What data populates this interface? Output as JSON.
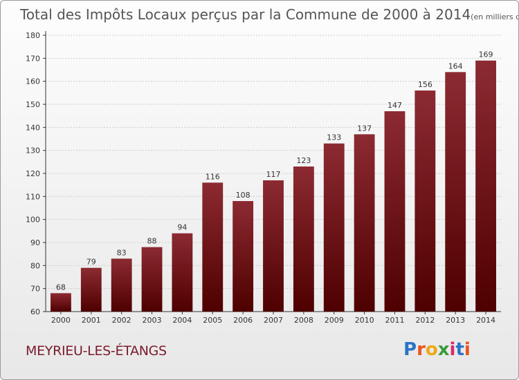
{
  "title": "Total des Impôts Locaux perçus par la Commune de 2000 à 2014",
  "unit_note": "(en milliers d'€)",
  "commune": "MEYRIEU-LES-ÉTANGS",
  "logo": {
    "text": "Proxiti",
    "letter_colors": [
      "#2a74c8",
      "#e8541c",
      "#f0a818",
      "#3a9a3a",
      "#d82a6a",
      "#2a74c8",
      "#e8541c"
    ]
  },
  "colors": {
    "bar_top": "#8c2a32",
    "bar_bottom": "#4e0000",
    "grid": "#cccccc",
    "axis": "#333333",
    "label": "#333333"
  },
  "chart_data": {
    "type": "bar",
    "categories": [
      "2000",
      "2001",
      "2002",
      "2003",
      "2004",
      "2005",
      "2006",
      "2007",
      "2008",
      "2009",
      "2010",
      "2011",
      "2012",
      "2013",
      "2014"
    ],
    "values": [
      68,
      79,
      83,
      88,
      94,
      116,
      108,
      117,
      123,
      133,
      137,
      147,
      156,
      164,
      169
    ],
    "ylim": [
      60,
      180
    ],
    "yticks": [
      60,
      70,
      80,
      90,
      100,
      110,
      120,
      130,
      140,
      150,
      160,
      170,
      180
    ],
    "grid": true,
    "data_labels": true
  }
}
